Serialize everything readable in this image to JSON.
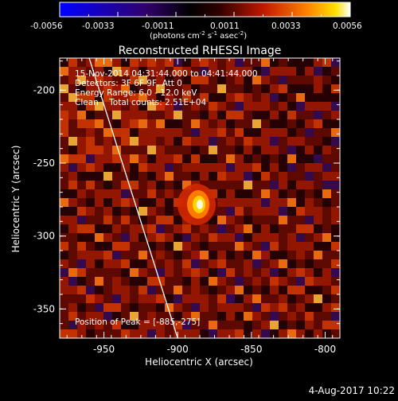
{
  "colorbar": {
    "ticks": [
      "-0.0056",
      "-0.0033",
      "-0.0011",
      "0.0011",
      "0.0033",
      "0.0056"
    ],
    "units_text": "(photons cm",
    "units_exp1": "-2",
    "units_mid": " s",
    "units_exp2": "-1",
    "units_mid2": " asec",
    "units_exp3": "-2",
    "units_close": ")"
  },
  "plot": {
    "title": "Reconstructed RHESSI Image",
    "info_lines": [
      "15-Nov-2014 04:31:44.000 to 04:41:44.000",
      "Detectors: 3F 6F 9F, Att 0",
      "Energy Range: 6.0 - 12.0 keV",
      "Clean    Total counts: 2.51E+04"
    ],
    "peak_text": "Position of Peak = [-885,-275]",
    "xlabel": "Heliocentric X (arcsec)",
    "ylabel": "Heliocentric Y (arcsec)",
    "date_stamp": "4-Aug-2017 10:22"
  },
  "chart_data": {
    "type": "heatmap",
    "title": "Reconstructed RHESSI Image",
    "xlabel": "Heliocentric X (arcsec)",
    "ylabel": "Heliocentric Y (arcsec)",
    "xlim": [
      -980,
      -790
    ],
    "ylim": [
      -370,
      -178
    ],
    "x_ticks": [
      -950,
      -900,
      -850,
      -800
    ],
    "y_ticks": [
      -350,
      -300,
      -250,
      -200
    ],
    "x_tick_labels": [
      "-950",
      "-900",
      "-850",
      "-800"
    ],
    "y_tick_labels": [
      "-350",
      "-300",
      "-250",
      "-200"
    ],
    "color_range": [
      -0.0056,
      0.0056
    ],
    "colormap": "blue-black-red-yellow-white",
    "peak": {
      "x": -885,
      "y": -275
    },
    "limb_line": [
      [
        -960,
        -178
      ],
      [
        -900,
        -370
      ]
    ],
    "colors": {
      "background": "#000000",
      "text": "#ffffff"
    }
  }
}
